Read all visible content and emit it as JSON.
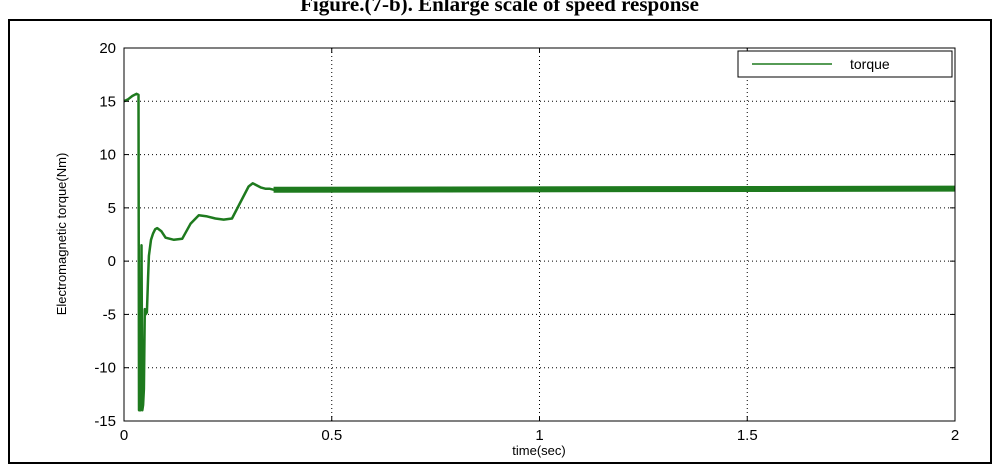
{
  "page": {
    "caption": "Figure.(7-b). Enlarge scale of speed response"
  },
  "chart_data": {
    "type": "line",
    "title": "",
    "xlabel": "time(sec)",
    "ylabel": "Electromagnetic torque(Nm)",
    "xlim": [
      0,
      2
    ],
    "ylim": [
      -15,
      20
    ],
    "xticks": [
      0,
      0.5,
      1,
      1.5,
      2
    ],
    "xtick_labels": [
      "0",
      "0.5",
      "1",
      "1.5",
      "2"
    ],
    "yticks": [
      -15,
      -10,
      -5,
      0,
      5,
      10,
      15,
      20
    ],
    "ytick_labels": [
      "-15",
      "-10",
      "-5",
      "0",
      "5",
      "10",
      "15",
      "20"
    ],
    "grid": true,
    "grid_style": "dotted",
    "legend_position": "top-right",
    "series": [
      {
        "name": "torque",
        "color": "#1e7a1e",
        "x": [
          0,
          0.01,
          0.02,
          0.03,
          0.035,
          0.036,
          0.04,
          0.042,
          0.044,
          0.046,
          0.048,
          0.05,
          0.052,
          0.055,
          0.058,
          0.06,
          0.065,
          0.07,
          0.075,
          0.08,
          0.09,
          0.1,
          0.12,
          0.14,
          0.16,
          0.18,
          0.2,
          0.22,
          0.24,
          0.26,
          0.28,
          0.3,
          0.31,
          0.32,
          0.33,
          0.34,
          0.35,
          0.36,
          0.37,
          0.38,
          0.4,
          0.5,
          1.0,
          1.5,
          2.0
        ],
        "y": [
          15,
          15.2,
          15.5,
          15.7,
          15.6,
          -14,
          -14,
          1.5,
          -14,
          -13.5,
          -12,
          -4.5,
          -5,
          -4.8,
          -1.5,
          0.5,
          2,
          2.6,
          3,
          3.1,
          2.8,
          2.2,
          2.0,
          2.1,
          3.5,
          4.3,
          4.2,
          4.0,
          3.9,
          4.0,
          5.5,
          7.0,
          7.3,
          7.1,
          6.9,
          6.8,
          6.8,
          6.7,
          6.8,
          6.8,
          6.8,
          6.8,
          6.8,
          6.8,
          6.8
        ]
      }
    ]
  }
}
